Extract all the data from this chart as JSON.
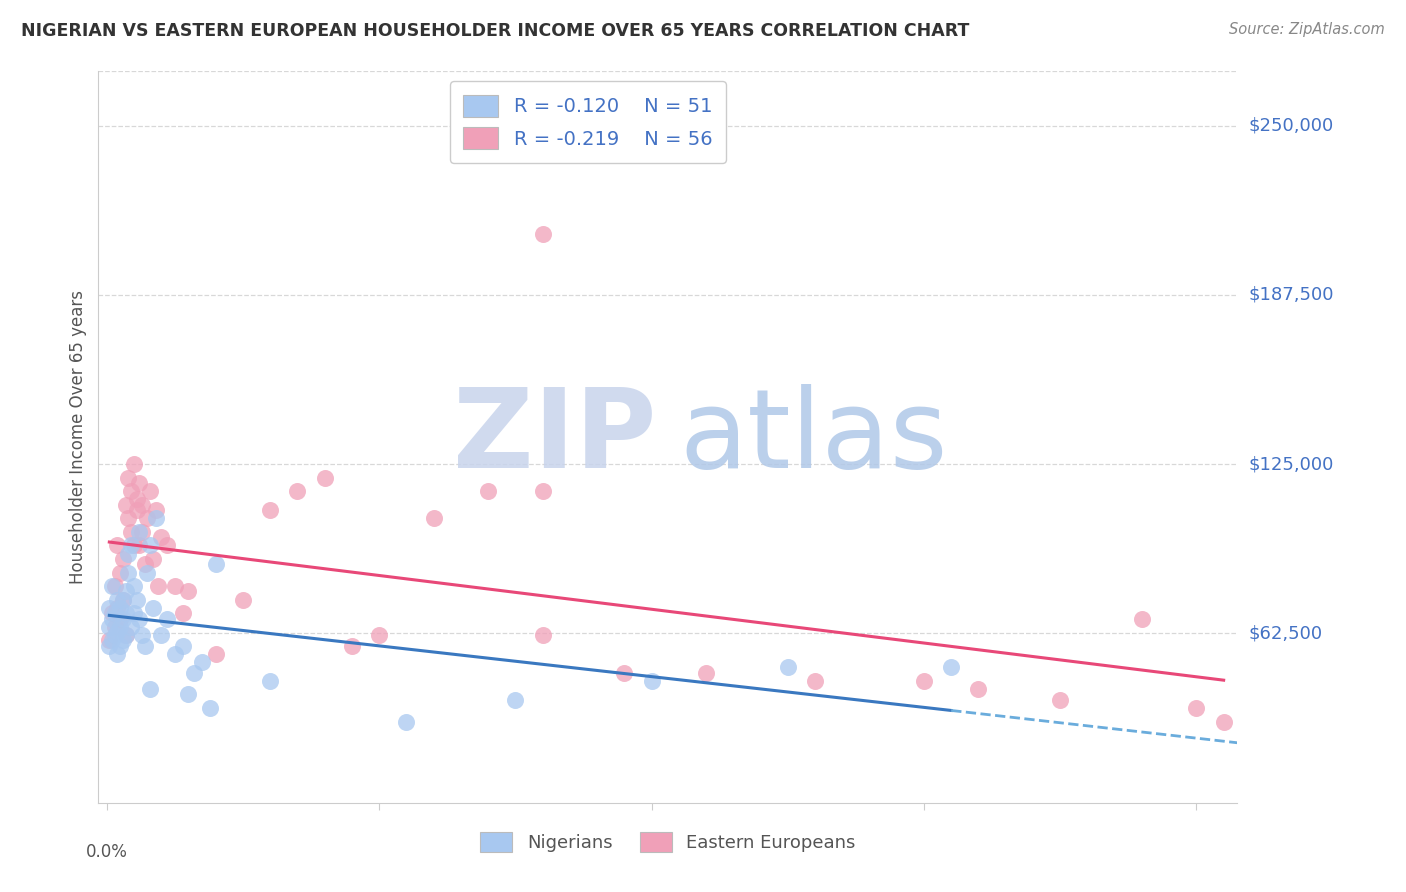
{
  "title": "NIGERIAN VS EASTERN EUROPEAN HOUSEHOLDER INCOME OVER 65 YEARS CORRELATION CHART",
  "source": "Source: ZipAtlas.com",
  "ylabel": "Householder Income Over 65 years",
  "ytick_values": [
    62500,
    125000,
    187500,
    250000
  ],
  "ytick_labels": [
    "$62,500",
    "$125,000",
    "$187,500",
    "$250,000"
  ],
  "ylim": [
    0,
    270000
  ],
  "xlim": [
    -0.003,
    0.415
  ],
  "legend_blue_r": "-0.120",
  "legend_blue_n": "51",
  "legend_pink_r": "-0.219",
  "legend_pink_n": "56",
  "blue_color": "#a8c8f0",
  "pink_color": "#f0a0b8",
  "trend_blue_solid_color": "#3a78c0",
  "trend_blue_dash_color": "#6aacdc",
  "trend_pink_color": "#e84878",
  "label_color": "#4472c4",
  "watermark_zip_color": "#c8d4ec",
  "watermark_atlas_color": "#b0c8e8",
  "grid_color": "#d8d8d8",
  "spine_color": "#cccccc",
  "title_color": "#333333",
  "source_color": "#888888",
  "ylabel_color": "#555555",
  "nigerians_x": [
    0.001,
    0.001,
    0.001,
    0.002,
    0.002,
    0.002,
    0.003,
    0.003,
    0.004,
    0.004,
    0.004,
    0.005,
    0.005,
    0.005,
    0.006,
    0.006,
    0.006,
    0.007,
    0.007,
    0.007,
    0.008,
    0.008,
    0.009,
    0.01,
    0.01,
    0.011,
    0.012,
    0.013,
    0.014,
    0.015,
    0.016,
    0.017,
    0.018,
    0.02,
    0.022,
    0.025,
    0.028,
    0.03,
    0.032,
    0.035,
    0.06,
    0.11,
    0.15,
    0.2,
    0.25,
    0.31,
    0.04,
    0.038,
    0.009,
    0.012,
    0.016
  ],
  "nigerians_y": [
    65000,
    58000,
    72000,
    60000,
    68000,
    80000,
    62000,
    70000,
    55000,
    63000,
    75000,
    58000,
    65000,
    72000,
    60000,
    68000,
    75000,
    62000,
    78000,
    70000,
    85000,
    92000,
    65000,
    70000,
    80000,
    75000,
    68000,
    62000,
    58000,
    85000,
    95000,
    72000,
    105000,
    62000,
    68000,
    55000,
    58000,
    40000,
    48000,
    52000,
    45000,
    30000,
    38000,
    45000,
    50000,
    50000,
    88000,
    35000,
    95000,
    100000,
    42000
  ],
  "eastern_x": [
    0.001,
    0.002,
    0.003,
    0.003,
    0.004,
    0.004,
    0.005,
    0.005,
    0.006,
    0.006,
    0.007,
    0.007,
    0.008,
    0.008,
    0.009,
    0.009,
    0.01,
    0.01,
    0.011,
    0.011,
    0.012,
    0.012,
    0.013,
    0.013,
    0.014,
    0.015,
    0.016,
    0.017,
    0.018,
    0.019,
    0.02,
    0.022,
    0.025,
    0.028,
    0.03,
    0.04,
    0.06,
    0.08,
    0.09,
    0.1,
    0.12,
    0.14,
    0.16,
    0.19,
    0.22,
    0.26,
    0.3,
    0.32,
    0.35,
    0.38,
    0.4,
    0.05,
    0.07,
    0.16,
    0.16,
    0.41
  ],
  "eastern_y": [
    60000,
    70000,
    65000,
    80000,
    72000,
    95000,
    68000,
    85000,
    75000,
    90000,
    62000,
    110000,
    105000,
    120000,
    100000,
    115000,
    95000,
    125000,
    112000,
    108000,
    95000,
    118000,
    100000,
    110000,
    88000,
    105000,
    115000,
    90000,
    108000,
    80000,
    98000,
    95000,
    80000,
    70000,
    78000,
    55000,
    108000,
    120000,
    58000,
    62000,
    105000,
    115000,
    210000,
    48000,
    48000,
    45000,
    45000,
    42000,
    38000,
    68000,
    35000,
    75000,
    115000,
    62000,
    115000,
    30000
  ]
}
